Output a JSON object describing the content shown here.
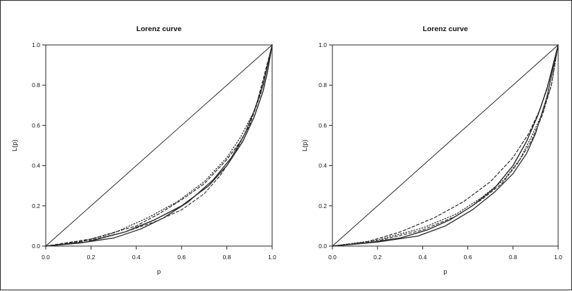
{
  "chart_data": [
    {
      "type": "line",
      "title": "Lorenz curve",
      "xlabel": "p",
      "ylabel": "L(p)",
      "xlim": [
        0,
        1
      ],
      "ylim": [
        0,
        1
      ],
      "x_ticks": [
        "0.0",
        "0.2",
        "0.4",
        "0.6",
        "0.8",
        "1.0"
      ],
      "y_ticks": [
        "0.0",
        "0.2",
        "0.4",
        "0.6",
        "0.8",
        "1.0"
      ],
      "grid": false,
      "series": [
        {
          "style": "solid",
          "color": "#111111",
          "points": [
            [
              0,
              0
            ],
            [
              1,
              1
            ]
          ]
        },
        {
          "style": "solid",
          "color": "#222222",
          "points": [
            [
              0,
              0
            ],
            [
              0.18,
              0.02
            ],
            [
              0.35,
              0.07
            ],
            [
              0.48,
              0.13
            ],
            [
              0.6,
              0.2
            ],
            [
              0.72,
              0.3
            ],
            [
              0.8,
              0.4
            ],
            [
              0.87,
              0.52
            ],
            [
              0.92,
              0.64
            ],
            [
              0.96,
              0.77
            ],
            [
              0.98,
              0.87
            ],
            [
              1,
              1
            ]
          ]
        },
        {
          "style": "solid",
          "color": "#333333",
          "points": [
            [
              0,
              0
            ],
            [
              0.15,
              0.015
            ],
            [
              0.3,
              0.04
            ],
            [
              0.42,
              0.085
            ],
            [
              0.52,
              0.14
            ],
            [
              0.63,
              0.22
            ],
            [
              0.74,
              0.33
            ],
            [
              0.82,
              0.44
            ],
            [
              0.88,
              0.56
            ],
            [
              0.92,
              0.67
            ],
            [
              0.96,
              0.8
            ],
            [
              1,
              1
            ]
          ]
        },
        {
          "style": "dashed",
          "color": "#222222",
          "points": [
            [
              0,
              0
            ],
            [
              0.2,
              0.035
            ],
            [
              0.4,
              0.1
            ],
            [
              0.5,
              0.16
            ],
            [
              0.6,
              0.23
            ],
            [
              0.7,
              0.31
            ],
            [
              0.8,
              0.43
            ],
            [
              0.86,
              0.52
            ],
            [
              0.9,
              0.6
            ],
            [
              0.95,
              0.76
            ],
            [
              1,
              1
            ]
          ]
        },
        {
          "style": "dashed",
          "color": "#333333",
          "points": [
            [
              0,
              0
            ],
            [
              0.2,
              0.03
            ],
            [
              0.35,
              0.07
            ],
            [
              0.48,
              0.12
            ],
            [
              0.6,
              0.18
            ],
            [
              0.7,
              0.26
            ],
            [
              0.77,
              0.35
            ],
            [
              0.83,
              0.45
            ],
            [
              0.88,
              0.56
            ],
            [
              0.93,
              0.7
            ],
            [
              1,
              1
            ]
          ]
        },
        {
          "style": "dotted",
          "color": "#222222",
          "points": [
            [
              0,
              0
            ],
            [
              0.15,
              0.02
            ],
            [
              0.3,
              0.065
            ],
            [
              0.45,
              0.14
            ],
            [
              0.58,
              0.22
            ],
            [
              0.7,
              0.32
            ],
            [
              0.8,
              0.44
            ],
            [
              0.86,
              0.54
            ],
            [
              0.92,
              0.67
            ],
            [
              0.96,
              0.81
            ],
            [
              1,
              1
            ]
          ]
        }
      ]
    },
    {
      "type": "line",
      "title": "Lorenz curve",
      "xlabel": "p",
      "ylabel": "L(p)",
      "xlim": [
        0,
        1
      ],
      "ylim": [
        0,
        1
      ],
      "x_ticks": [
        "0.0",
        "0.2",
        "0.4",
        "0.6",
        "0.8",
        "1.0"
      ],
      "y_ticks": [
        "0.0",
        "0.2",
        "0.4",
        "0.6",
        "0.8",
        "1.0"
      ],
      "grid": false,
      "series": [
        {
          "style": "solid",
          "color": "#111111",
          "points": [
            [
              0,
              0
            ],
            [
              1,
              1
            ]
          ]
        },
        {
          "style": "solid",
          "color": "#222222",
          "points": [
            [
              0,
              0
            ],
            [
              0.15,
              0.015
            ],
            [
              0.3,
              0.04
            ],
            [
              0.42,
              0.08
            ],
            [
              0.52,
              0.13
            ],
            [
              0.62,
              0.2
            ],
            [
              0.72,
              0.29
            ],
            [
              0.8,
              0.4
            ],
            [
              0.86,
              0.52
            ],
            [
              0.91,
              0.65
            ],
            [
              0.95,
              0.78
            ],
            [
              1,
              1
            ]
          ]
        },
        {
          "style": "solid",
          "color": "#333333",
          "points": [
            [
              0,
              0
            ],
            [
              0.2,
              0.02
            ],
            [
              0.38,
              0.05
            ],
            [
              0.5,
              0.1
            ],
            [
              0.62,
              0.18
            ],
            [
              0.72,
              0.27
            ],
            [
              0.8,
              0.36
            ],
            [
              0.86,
              0.46
            ],
            [
              0.9,
              0.56
            ],
            [
              0.95,
              0.74
            ],
            [
              1,
              1
            ]
          ]
        },
        {
          "style": "dashed",
          "color": "#222222",
          "points": [
            [
              0,
              0
            ],
            [
              0.15,
              0.02
            ],
            [
              0.3,
              0.07
            ],
            [
              0.45,
              0.14
            ],
            [
              0.58,
              0.22
            ],
            [
              0.7,
              0.32
            ],
            [
              0.8,
              0.44
            ],
            [
              0.87,
              0.56
            ],
            [
              0.92,
              0.68
            ],
            [
              0.96,
              0.82
            ],
            [
              1,
              1
            ]
          ]
        },
        {
          "style": "dashed",
          "color": "#333333",
          "points": [
            [
              0,
              0
            ],
            [
              0.2,
              0.025
            ],
            [
              0.4,
              0.08
            ],
            [
              0.55,
              0.15
            ],
            [
              0.66,
              0.23
            ],
            [
              0.75,
              0.31
            ],
            [
              0.82,
              0.41
            ],
            [
              0.88,
              0.52
            ],
            [
              0.93,
              0.65
            ],
            [
              0.97,
              0.8
            ],
            [
              1,
              1
            ]
          ]
        },
        {
          "style": "dotted",
          "color": "#222222",
          "points": [
            [
              0,
              0
            ],
            [
              0.2,
              0.03
            ],
            [
              0.4,
              0.09
            ],
            [
              0.55,
              0.16
            ],
            [
              0.66,
              0.24
            ],
            [
              0.76,
              0.33
            ],
            [
              0.83,
              0.43
            ],
            [
              0.88,
              0.54
            ],
            [
              0.93,
              0.66
            ],
            [
              0.97,
              0.8
            ],
            [
              1,
              1
            ]
          ]
        }
      ]
    }
  ]
}
